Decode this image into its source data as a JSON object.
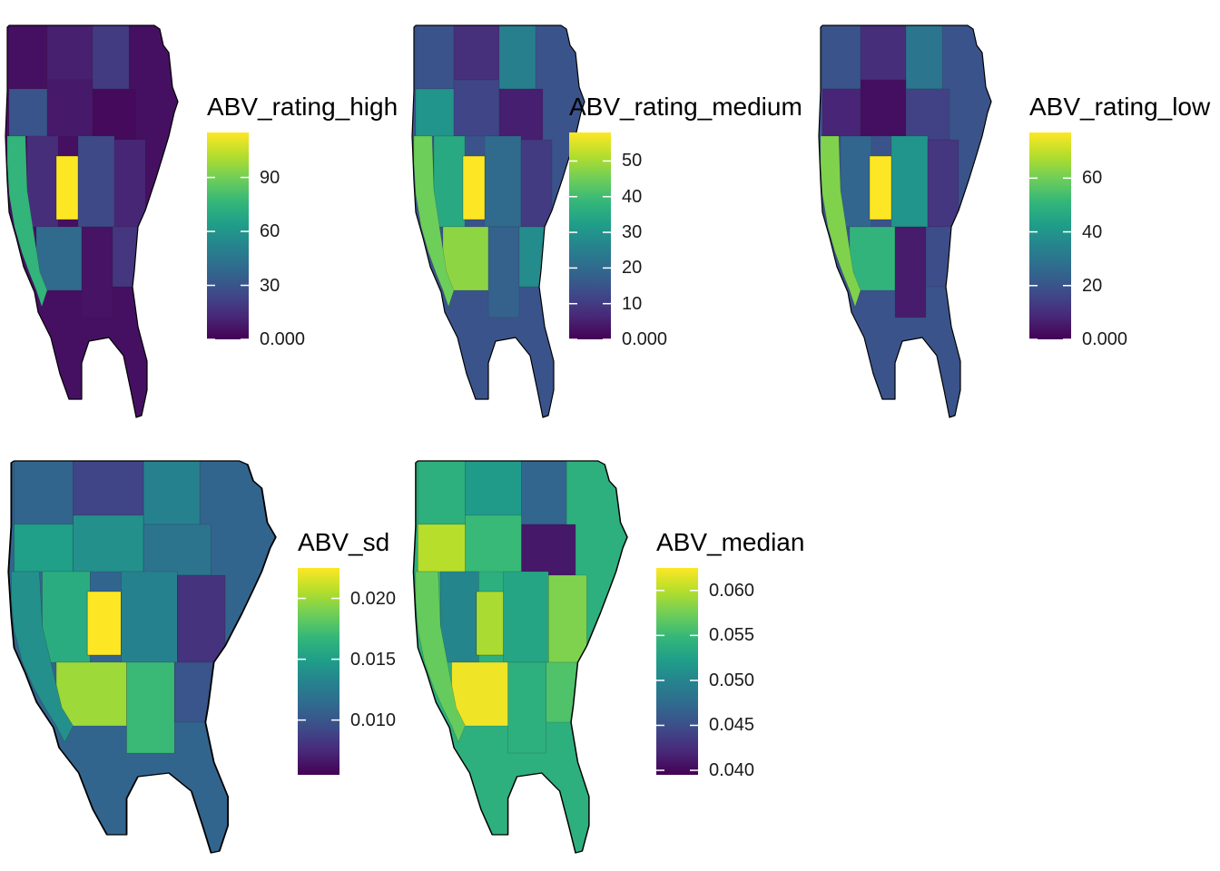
{
  "panels": [
    {
      "legend_title": "ABV_rating_high",
      "scale": {
        "min": 0,
        "max": 115,
        "ticks": [
          0,
          30,
          60,
          90
        ]
      },
      "highlight_value": 115,
      "west_coast_value": 75,
      "region_values": [
        5,
        10,
        20,
        30,
        8,
        3,
        15,
        25,
        12,
        40,
        6,
        18
      ]
    },
    {
      "legend_title": "ABV_rating_medium",
      "scale": {
        "min": 0,
        "max": 58,
        "ticks": [
          0,
          10,
          20,
          30,
          40,
          50
        ]
      },
      "highlight_value": 58,
      "west_coast_value": 45,
      "region_values": [
        15,
        8,
        25,
        30,
        12,
        5,
        35,
        20,
        10,
        48,
        18,
        28
      ]
    },
    {
      "legend_title": "ABV_rating_low",
      "scale": {
        "min": 0,
        "max": 77,
        "ticks": [
          0,
          20,
          40,
          60
        ]
      },
      "highlight_value": 77,
      "west_coast_value": 62,
      "region_values": [
        20,
        10,
        30,
        8,
        3,
        15,
        25,
        40,
        12,
        50,
        6,
        18
      ]
    },
    {
      "legend_title": "ABV_sd",
      "scale": {
        "min": 0.0055,
        "max": 0.0225,
        "ticks": [
          0.01,
          0.015,
          0.02
        ]
      },
      "highlight_value": 0.0225,
      "west_coast_value": 0.014,
      "region_values": [
        0.011,
        0.009,
        0.013,
        0.015,
        0.014,
        0.012,
        0.016,
        0.013,
        0.008,
        0.02,
        0.017,
        0.01
      ]
    },
    {
      "legend_title": "ABV_median",
      "scale": {
        "min": 0.0395,
        "max": 0.0625,
        "ticks": [
          0.04,
          0.045,
          0.05,
          0.055,
          0.06
        ]
      },
      "highlight_value": 0.0595,
      "west_coast_value": 0.057,
      "region_values": [
        0.054,
        0.052,
        0.047,
        0.06,
        0.055,
        0.041,
        0.05,
        0.053,
        0.058,
        0.062,
        0.054,
        0.056
      ]
    }
  ],
  "colormap": [
    "#440154",
    "#482878",
    "#3e4a89",
    "#31688e",
    "#26828e",
    "#1f9e89",
    "#35b779",
    "#6ece58",
    "#b5de2b",
    "#fde725"
  ]
}
